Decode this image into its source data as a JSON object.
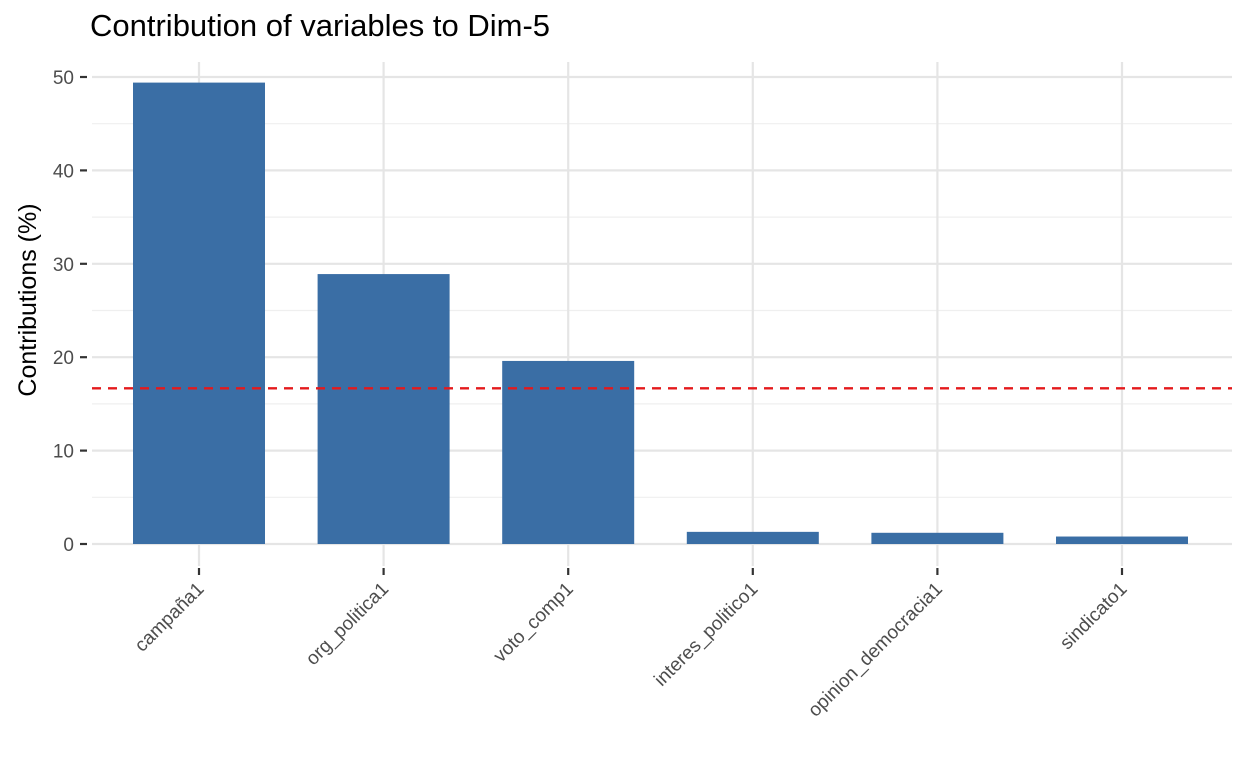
{
  "chart_data": {
    "type": "bar",
    "title": "Contribution of variables to Dim-5",
    "ylabel": "Contributions (%)",
    "xlabel": "",
    "categories": [
      "campaña1",
      "org_politica1",
      "voto_comp1",
      "interes_politico1",
      "opinion_democracia1",
      "sindicato1"
    ],
    "values": [
      49.4,
      28.9,
      19.6,
      1.3,
      1.2,
      0.8
    ],
    "reference_line": 16.67,
    "ylim": [
      0,
      50
    ],
    "yticks": [
      "0",
      "10",
      "20",
      "30",
      "40",
      "50"
    ],
    "grid": true,
    "legend": "none"
  },
  "colors": {
    "bar": "#3a6ea5",
    "reference_line": "#e41a1c",
    "grid_major": "#e5e5e5",
    "grid_minor": "#efefef"
  }
}
